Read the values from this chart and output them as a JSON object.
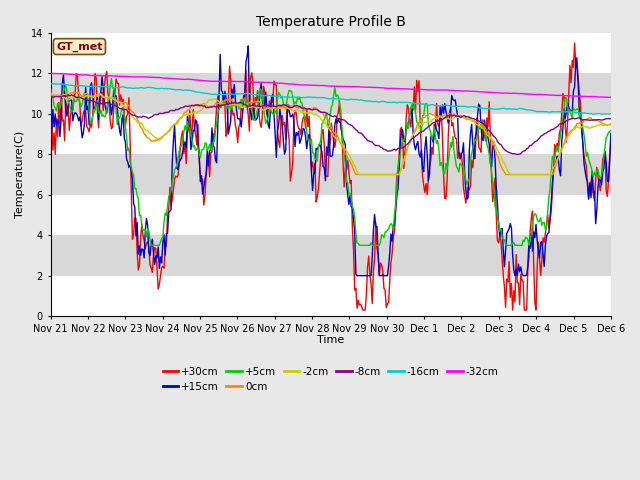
{
  "title": "Temperature Profile B",
  "xlabel": "Time",
  "ylabel": "Temperature(C)",
  "ylim": [
    0,
    14
  ],
  "yticks": [
    0,
    2,
    4,
    6,
    8,
    10,
    12,
    14
  ],
  "x_labels": [
    "Nov 21",
    "Nov 22",
    "Nov 23",
    "Nov 24",
    "Nov 25",
    "Nov 26",
    "Nov 27",
    "Nov 28",
    "Nov 29",
    "Nov 30",
    "Dec 1",
    "Dec 2",
    "Dec 3",
    "Dec 4",
    "Dec 5",
    "Dec 6"
  ],
  "legend_label": "GT_met",
  "legend_box_color": "#f5f0c8",
  "legend_box_edge": "#8b4513",
  "series_labels": [
    "+30cm",
    "+15cm",
    "+5cm",
    "0cm",
    "-2cm",
    "-8cm",
    "-16cm",
    "-32cm"
  ],
  "series_colors": [
    "#ff0000",
    "#0000cc",
    "#00cc00",
    "#ff8800",
    "#cccc00",
    "#880088",
    "#00cccc",
    "#ff00ff"
  ],
  "bg_color": "#e8e8e8",
  "band_colors": [
    "#ffffff",
    "#d8d8d8"
  ],
  "grid_color": "#cccccc"
}
